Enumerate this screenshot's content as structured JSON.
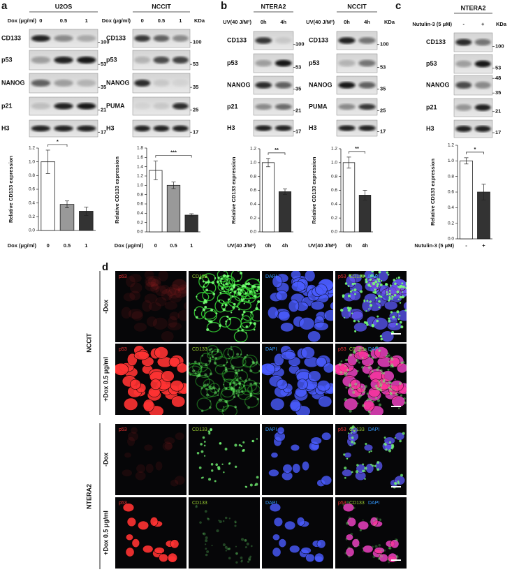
{
  "panel_letters": [
    "a",
    "b",
    "c",
    "d"
  ],
  "blots": [
    {
      "title": "U2OS",
      "treatment": "Dox (μg/ml)",
      "lanes": [
        "0",
        "0.5",
        "1"
      ],
      "rows": [
        {
          "label": "CD133",
          "markers": [
            100
          ]
        },
        {
          "label": "p53",
          "markers": [
            53
          ]
        },
        {
          "label": "NANOG",
          "markers": [
            35
          ]
        },
        {
          "label": "p21",
          "markers": [
            21
          ]
        },
        {
          "label": "H3",
          "markers": [
            17
          ]
        }
      ]
    },
    {
      "title": "NCCIT",
      "treatment": "Dox (μg/ml)",
      "lanes": [
        "0",
        "0.5",
        "1"
      ],
      "unit": "KDa",
      "rows": [
        {
          "label": "CD133",
          "markers": [
            100
          ]
        },
        {
          "label": "p53",
          "markers": [
            53
          ]
        },
        {
          "label": "NANOG",
          "markers": [
            35
          ]
        },
        {
          "label": "PUMA",
          "markers": [
            25
          ]
        },
        {
          "label": "H3",
          "markers": [
            17
          ]
        }
      ]
    },
    {
      "title": "NTERA2",
      "treatment": "UV(40 J/M²)",
      "lanes": [
        "0h",
        "4h"
      ],
      "rows": [
        {
          "label": "CD133",
          "markers": [
            100
          ]
        },
        {
          "label": "p53",
          "markers": [
            53
          ]
        },
        {
          "label": "NANOG",
          "markers": [
            35
          ]
        },
        {
          "label": "p21",
          "markers": [
            21
          ]
        },
        {
          "label": "H3",
          "markers": [
            17
          ]
        }
      ]
    },
    {
      "title": "NCCIT",
      "treatment": "UV(40 J/M²)",
      "lanes": [
        "0h",
        "4h"
      ],
      "unit": "KDa",
      "rows": [
        {
          "label": "CD133",
          "markers": [
            100
          ]
        },
        {
          "label": "p53",
          "markers": [
            53
          ]
        },
        {
          "label": "NANOG",
          "markers": [
            35
          ]
        },
        {
          "label": "PUMA",
          "markers": [
            25
          ]
        },
        {
          "label": "H3",
          "markers": [
            17
          ]
        }
      ]
    },
    {
      "title": "NTERA2",
      "treatment": "Nutulin-3 (5 μM)",
      "lanes": [
        "-",
        "+"
      ],
      "unit": "KDa",
      "rows": [
        {
          "label": "CD133",
          "markers": [
            100
          ]
        },
        {
          "label": "p53",
          "markers": [
            53
          ]
        },
        {
          "label": "NANOG",
          "markers": [
            48,
            35
          ]
        },
        {
          "label": "p21",
          "markers": [
            21
          ]
        },
        {
          "label": "H3",
          "markers": [
            17
          ]
        }
      ]
    }
  ],
  "chart_data": [
    {
      "type": "bar",
      "ylabel": "Relative CD133 expression",
      "xlabel": "Dox (μg/ml)",
      "categories": [
        "0",
        "0.5",
        "1"
      ],
      "values": [
        1.0,
        0.38,
        0.28
      ],
      "errors": [
        0.17,
        0.05,
        0.06
      ],
      "colors": [
        "#ffffff",
        "#999999",
        "#333333"
      ],
      "significance": "*",
      "ylim": [
        0,
        1.2
      ],
      "yticks": [
        {
          "value": 0,
          "label": "0.0"
        },
        0.2,
        0.4,
        0.6,
        0.8,
        {
          "value": 1,
          "label": "1.0"
        },
        1.2
      ]
    },
    {
      "type": "bar",
      "ylabel": "Relative CD133 expression",
      "xlabel": "Dox (μg/ml)",
      "categories": [
        "0",
        "0.5",
        "1"
      ],
      "values": [
        1.32,
        1.0,
        0.36
      ],
      "errors": [
        0.2,
        0.07,
        0.03
      ],
      "colors": [
        "#ffffff",
        "#999999",
        "#333333"
      ],
      "significance": "***",
      "ylim": [
        0,
        1.8
      ],
      "yticks": [
        {
          "value": 0,
          "label": "0.0"
        },
        0.2,
        0.4,
        0.6,
        0.8,
        {
          "value": 1,
          "label": "1.0"
        },
        1.2,
        1.4,
        1.6,
        1.8
      ]
    },
    {
      "type": "bar",
      "ylabel": "Relative CD133 expression",
      "xlabel": "UV(40 J/M²)",
      "categories": [
        "0h",
        "4h"
      ],
      "values": [
        1.0,
        0.58
      ],
      "errors": [
        0.06,
        0.04
      ],
      "colors": [
        "#ffffff",
        "#333333"
      ],
      "significance": "**",
      "ylim": [
        0,
        1.2
      ],
      "yticks": [
        {
          "value": 0,
          "label": "0.0"
        },
        0.2,
        0.4,
        0.6,
        0.8,
        {
          "value": 1,
          "label": "1.0"
        },
        1.2
      ]
    },
    {
      "type": "bar",
      "ylabel": "Relative CD133 expression",
      "xlabel": "UV(40 J/M²)",
      "categories": [
        "0h",
        "4h"
      ],
      "values": [
        1.0,
        0.53
      ],
      "errors": [
        0.08,
        0.07
      ],
      "colors": [
        "#ffffff",
        "#333333"
      ],
      "significance": "**",
      "ylim": [
        0,
        1.2
      ],
      "yticks": [
        {
          "value": 0,
          "label": "0.0"
        },
        0.2,
        0.4,
        0.6,
        0.8,
        {
          "value": 1,
          "label": "1.0"
        },
        1.2
      ]
    },
    {
      "type": "bar",
      "ylabel": "Relative CD133 expression",
      "xlabel": "Nutulin-3 (5 μM)",
      "categories": [
        "-",
        "+"
      ],
      "values": [
        1.0,
        0.6
      ],
      "errors": [
        0.04,
        0.1
      ],
      "colors": [
        "#ffffff",
        "#333333"
      ],
      "significance": "*",
      "ylim": [
        0,
        1.2
      ],
      "yticks": [
        {
          "value": 0,
          "label": "0.0"
        },
        0.2,
        0.4,
        0.6,
        0.8,
        {
          "value": 1,
          "label": "1.0"
        },
        1.2
      ]
    }
  ],
  "microscopy": {
    "channels": [
      "p53",
      "CD133",
      "DAPI"
    ],
    "conditions": [
      "-Dox",
      "+Dox 0.5 μg/ml"
    ],
    "cell_lines": [
      "NCCIT",
      "NTERA2"
    ]
  }
}
